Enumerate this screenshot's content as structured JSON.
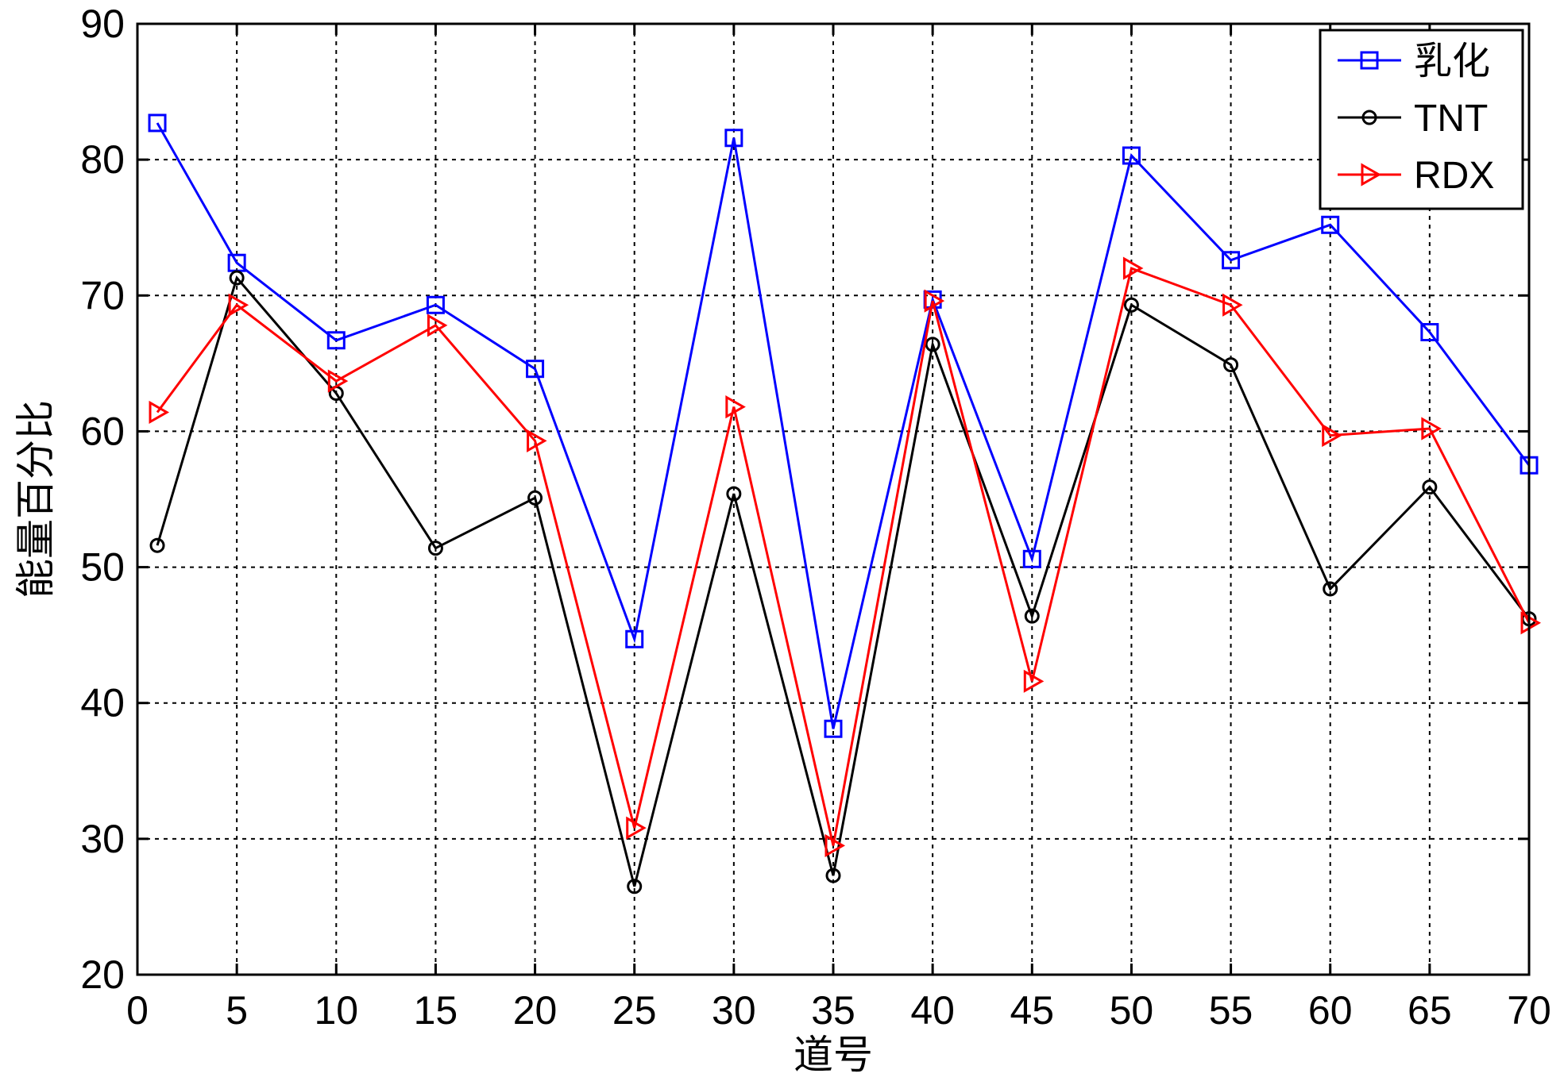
{
  "chart_data": {
    "type": "line",
    "title": "",
    "xlabel": "道号",
    "ylabel": "能量百分比",
    "xlim": [
      0,
      70
    ],
    "ylim": [
      20,
      90
    ],
    "xticks": [
      0,
      5,
      10,
      15,
      20,
      25,
      30,
      35,
      40,
      45,
      50,
      55,
      60,
      65,
      70
    ],
    "yticks": [
      20,
      30,
      40,
      50,
      60,
      70,
      80,
      90
    ],
    "grid": true,
    "legend": "top-right",
    "x": [
      1,
      5,
      10,
      15,
      20,
      25,
      30,
      35,
      40,
      45,
      50,
      55,
      60,
      65,
      70
    ],
    "series": [
      {
        "name": "乳化",
        "color": "#0000ff",
        "marker": "square",
        "values": [
          82.7,
          72.4,
          66.7,
          69.3,
          64.6,
          44.7,
          81.6,
          38.1,
          69.7,
          50.6,
          80.3,
          72.6,
          75.2,
          67.3,
          57.5
        ]
      },
      {
        "name": "TNT",
        "color": "#000000",
        "marker": "circle",
        "values": [
          51.6,
          71.3,
          62.8,
          51.4,
          55.1,
          26.5,
          55.4,
          27.3,
          66.4,
          46.4,
          69.3,
          64.9,
          48.4,
          55.9,
          46.2
        ]
      },
      {
        "name": "RDX",
        "color": "#ff0000",
        "marker": "triangle-right",
        "values": [
          61.4,
          69.3,
          63.7,
          67.8,
          59.3,
          30.8,
          61.8,
          29.5,
          69.6,
          41.6,
          72.0,
          69.3,
          59.7,
          60.2,
          45.9
        ]
      }
    ]
  }
}
